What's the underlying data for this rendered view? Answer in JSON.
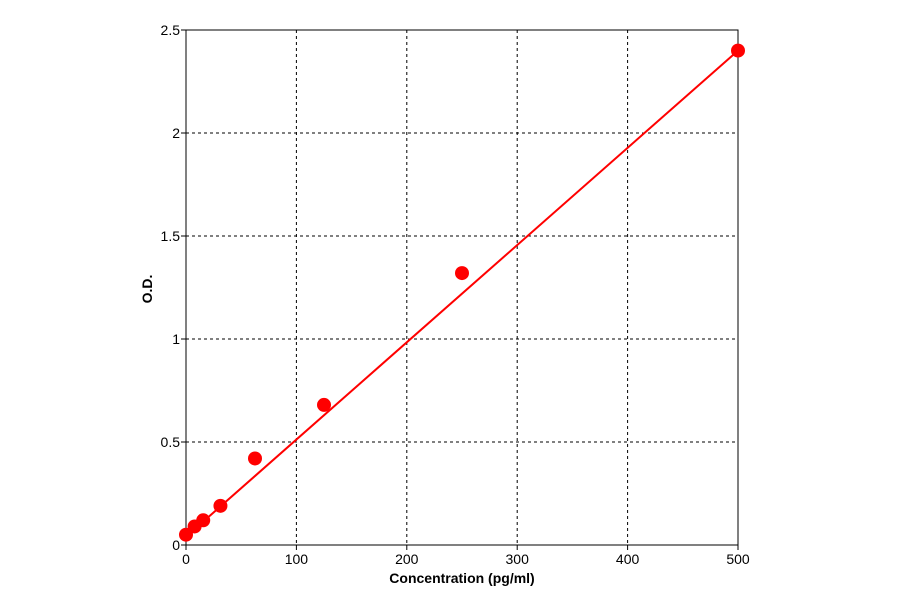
{
  "chart_data": {
    "type": "scatter",
    "title": "",
    "xlabel": "Concentration (pg/ml)",
    "ylabel": "O.D.",
    "xlim": [
      0,
      500
    ],
    "ylim": [
      0,
      2.5
    ],
    "x_ticks": [
      0,
      100,
      200,
      300,
      400,
      500
    ],
    "y_ticks": [
      0,
      0.5,
      1,
      1.5,
      2,
      2.5
    ],
    "x_tick_labels": [
      "0",
      "100",
      "200",
      "300",
      "400",
      "500"
    ],
    "y_tick_labels": [
      "0",
      "0.5",
      "1",
      "1.5",
      "2",
      "2.5"
    ],
    "grid": true,
    "grid_style": "dashed",
    "points": [
      {
        "x": 0,
        "y": 0.05
      },
      {
        "x": 7.8,
        "y": 0.09
      },
      {
        "x": 15.6,
        "y": 0.12
      },
      {
        "x": 31.2,
        "y": 0.19
      },
      {
        "x": 62.5,
        "y": 0.42
      },
      {
        "x": 125,
        "y": 0.68
      },
      {
        "x": 250,
        "y": 1.32
      },
      {
        "x": 500,
        "y": 2.4
      }
    ],
    "fit_line": {
      "x": [
        0,
        500
      ],
      "y": [
        0.04,
        2.4
      ]
    },
    "colors": {
      "series": "#ff0000",
      "grid": "#000000",
      "frame": "#000000"
    }
  }
}
